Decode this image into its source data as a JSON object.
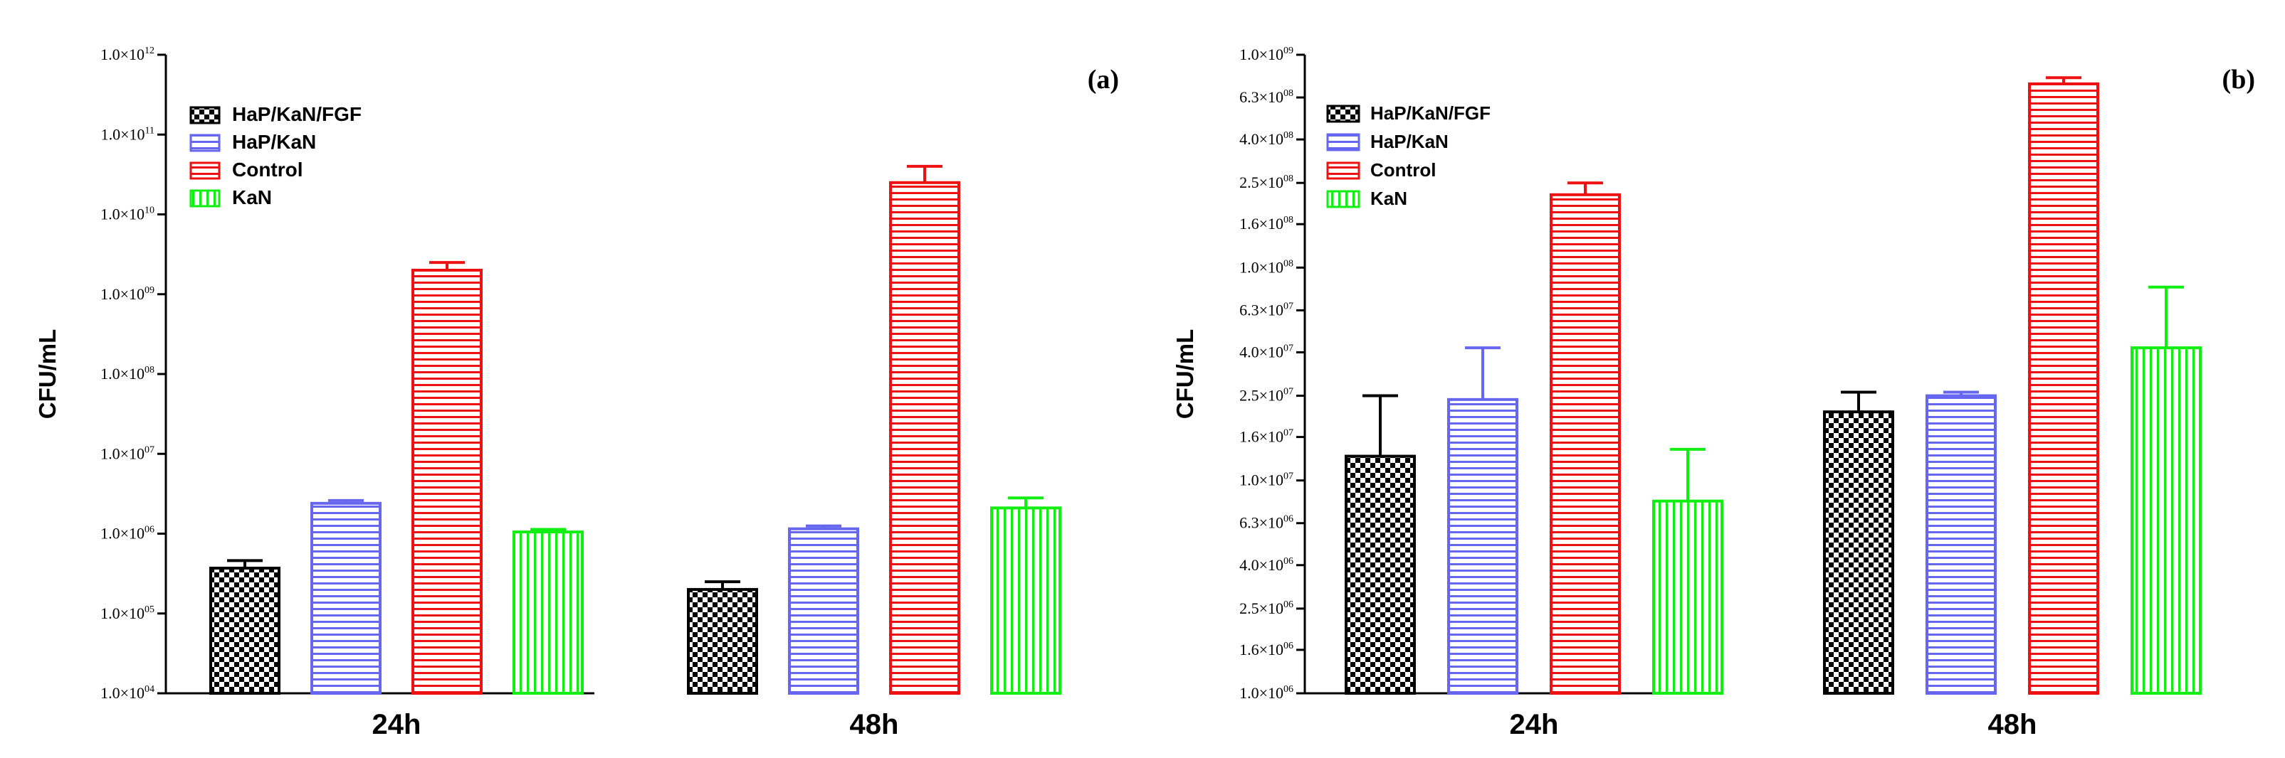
{
  "colors": {
    "HaP/KaN/FGF": "#000000",
    "HaP/KaN": "#6666ee",
    "Control": "#ee1111",
    "KaN": "#11ee11"
  },
  "chart_data": [
    {
      "type": "bar",
      "panel_label": "(a)",
      "ylabel": "CFU/mL",
      "scale": "log",
      "ylim": [
        10000,
        1000000000000
      ],
      "yticks": [
        {
          "mant": "1.0×10",
          "exp": "04"
        },
        {
          "mant": "1.0×10",
          "exp": "05"
        },
        {
          "mant": "1.0×10",
          "exp": "06"
        },
        {
          "mant": "1.0×10",
          "exp": "07"
        },
        {
          "mant": "1.0×10",
          "exp": "08"
        },
        {
          "mant": "1.0×10",
          "exp": "09"
        },
        {
          "mant": "1.0×10",
          "exp": "10"
        },
        {
          "mant": "1.0×10",
          "exp": "11"
        },
        {
          "mant": "1.0×10",
          "exp": "12"
        }
      ],
      "categories": [
        "24h",
        "48h"
      ],
      "series": [
        {
          "name": "HaP/KaN/FGF",
          "values": [
            370000,
            200000
          ],
          "errors": [
            460000,
            250000
          ]
        },
        {
          "name": "HaP/KaN",
          "values": [
            2400000,
            1150000
          ],
          "errors": [
            2600000,
            1250000
          ]
        },
        {
          "name": "Control",
          "values": [
            2000000000,
            25000000000
          ],
          "errors": [
            2500000000,
            40000000000
          ]
        },
        {
          "name": "KaN",
          "values": [
            1050000,
            2100000
          ],
          "errors": [
            1130000,
            2800000
          ]
        }
      ]
    },
    {
      "type": "bar",
      "panel_label": "(b)",
      "ylabel": "CFU/mL",
      "scale": "log",
      "ylim": [
        1000000,
        1000000000
      ],
      "yticks": [
        {
          "mant": "1.0×10",
          "exp": "06"
        },
        {
          "mant": "1.6×10",
          "exp": "06"
        },
        {
          "mant": "2.5×10",
          "exp": "06"
        },
        {
          "mant": "4.0×10",
          "exp": "06"
        },
        {
          "mant": "6.3×10",
          "exp": "06"
        },
        {
          "mant": "1.0×10",
          "exp": "07"
        },
        {
          "mant": "1.6×10",
          "exp": "07"
        },
        {
          "mant": "2.5×10",
          "exp": "07"
        },
        {
          "mant": "4.0×10",
          "exp": "07"
        },
        {
          "mant": "6.3×10",
          "exp": "07"
        },
        {
          "mant": "1.0×10",
          "exp": "08"
        },
        {
          "mant": "1.6×10",
          "exp": "08"
        },
        {
          "mant": "2.5×10",
          "exp": "08"
        },
        {
          "mant": "4.0×10",
          "exp": "08"
        },
        {
          "mant": "6.3×10",
          "exp": "08"
        },
        {
          "mant": "1.0×10",
          "exp": "09"
        }
      ],
      "categories": [
        "24h",
        "48h"
      ],
      "series": [
        {
          "name": "HaP/KaN/FGF",
          "values": [
            13000000,
            21000000
          ],
          "errors": [
            25000000,
            26000000
          ]
        },
        {
          "name": "HaP/KaN",
          "values": [
            24000000,
            25000000
          ],
          "errors": [
            42000000,
            26000000
          ]
        },
        {
          "name": "Control",
          "values": [
            220000000,
            730000000
          ],
          "errors": [
            250000000,
            780000000
          ]
        },
        {
          "name": "KaN",
          "values": [
            8000000,
            42000000
          ],
          "errors": [
            14000000,
            81000000
          ]
        }
      ]
    }
  ]
}
